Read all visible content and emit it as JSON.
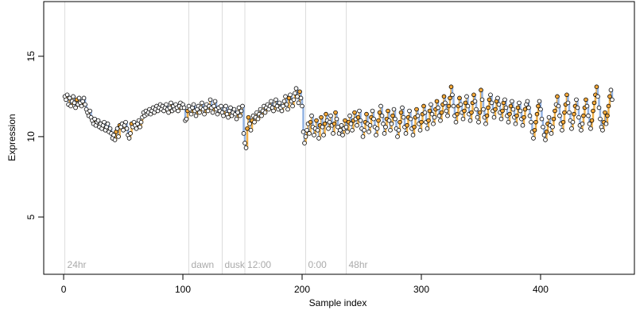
{
  "chart_data": {
    "type": "step-scatter",
    "xlabel": "Sample index",
    "ylabel": "Expression",
    "xlim": [
      -16.7,
      478.7
    ],
    "ylim": [
      1.44,
      18.4
    ],
    "xticks": [
      0,
      100,
      200,
      300,
      400
    ],
    "yticks": [
      5,
      10,
      15
    ],
    "up_color": "#f2b24a",
    "down_color": "#93b3e3",
    "point_color": "#ffffff",
    "point_up_color": "#f5a93a",
    "annotation_y": 2.0,
    "annotations": [
      {
        "x": 1,
        "label": "24hr"
      },
      {
        "x": 105,
        "label": "dawn"
      },
      {
        "x": 133,
        "label": "dusk"
      },
      {
        "x": 152,
        "label": "12:00"
      },
      {
        "x": 203,
        "label": "0:00"
      },
      {
        "x": 237,
        "label": "48hr"
      }
    ],
    "values": [
      12.5,
      12.3,
      12.6,
      12.0,
      12.4,
      11.9,
      12.2,
      12.5,
      12.1,
      11.8,
      12.3,
      12.0,
      12.4,
      12.1,
      11.9,
      12.2,
      12.4,
      12.0,
      11.7,
      11.5,
      11.3,
      11.6,
      11.2,
      11.0,
      10.8,
      11.1,
      10.7,
      10.9,
      11.0,
      10.6,
      10.8,
      10.5,
      10.7,
      10.9,
      10.4,
      10.6,
      10.8,
      10.3,
      10.5,
      10.2,
      9.9,
      10.1,
      9.8,
      10.3,
      10.5,
      10.0,
      10.7,
      10.6,
      10.8,
      10.4,
      10.7,
      10.9,
      10.5,
      10.1,
      9.9,
      10.2,
      10.8,
      10.6,
      10.9,
      10.7,
      10.5,
      10.8,
      11.0,
      10.6,
      10.9,
      11.2,
      11.5,
      11.3,
      11.6,
      11.4,
      11.5,
      11.7,
      11.4,
      11.6,
      11.8,
      11.5,
      11.7,
      11.9,
      11.6,
      11.8,
      12.0,
      11.7,
      11.9,
      11.6,
      11.8,
      12.0,
      11.7,
      11.5,
      11.8,
      12.1,
      11.6,
      11.9,
      11.7,
      12.0,
      11.8,
      11.6,
      11.9,
      12.1,
      11.8,
      12.0,
      11.8,
      11.0,
      11.1,
      11.6,
      11.9,
      11.7,
      11.4,
      11.8,
      12.0,
      11.6,
      11.3,
      11.7,
      11.9,
      11.5,
      11.8,
      12.1,
      11.7,
      11.4,
      11.8,
      12.0,
      11.6,
      11.9,
      12.3,
      11.8,
      11.5,
      11.9,
      12.2,
      11.7,
      11.4,
      11.8,
      11.6,
      11.9,
      11.5,
      11.3,
      11.7,
      11.9,
      11.4,
      11.2,
      11.6,
      11.8,
      11.3,
      11.5,
      11.7,
      11.4,
      11.1,
      11.5,
      11.8,
      11.3,
      11.6,
      11.9,
      10.2,
      9.6,
      9.3,
      10.5,
      11.2,
      10.8,
      10.4,
      11.0,
      11.3,
      10.9,
      11.2,
      11.5,
      11.1,
      11.4,
      11.7,
      11.3,
      11.6,
      11.9,
      11.5,
      11.8,
      12.0,
      11.7,
      11.9,
      12.2,
      11.8,
      11.6,
      12.0,
      12.3,
      11.9,
      11.7,
      12.1,
      11.8,
      11.6,
      11.9,
      12.2,
      12.5,
      12.0,
      11.7,
      12.4,
      12.6,
      12.2,
      11.9,
      12.3,
      12.7,
      13.0,
      12.5,
      12.1,
      12.8,
      12.4,
      11.9,
      10.3,
      9.6,
      10.0,
      10.4,
      10.8,
      10.2,
      10.9,
      11.3,
      10.6,
      10.1,
      10.5,
      11.0,
      10.4,
      9.9,
      10.7,
      11.2,
      10.6,
      10.1,
      10.8,
      11.4,
      11.0,
      10.5,
      10.9,
      11.3,
      10.7,
      10.2,
      10.8,
      11.5,
      11.1,
      10.6,
      10.2,
      10.4,
      10.7,
      10.1,
      10.5,
      11.0,
      10.6,
      10.3,
      10.9,
      11.3,
      10.8,
      10.4,
      11.0,
      11.5,
      11.1,
      10.7,
      11.2,
      11.6,
      11.0,
      10.5,
      10.0,
      10.4,
      10.9,
      11.4,
      10.8,
      10.3,
      10.7,
      11.2,
      11.6,
      11.1,
      10.6,
      10.1,
      10.5,
      11.0,
      11.5,
      11.9,
      11.3,
      10.8,
      10.2,
      10.6,
      11.1,
      11.6,
      11.0,
      10.4,
      10.8,
      11.3,
      11.7,
      11.1,
      10.5,
      10.0,
      10.4,
      10.9,
      11.5,
      11.8,
      11.2,
      10.6,
      10.2,
      10.7,
      11.2,
      11.6,
      11.1,
      10.5,
      10.1,
      10.6,
      11.2,
      11.7,
      11.3,
      10.8,
      10.4,
      10.9,
      11.4,
      11.9,
      11.5,
      10.9,
      10.5,
      11.0,
      11.6,
      12.0,
      11.4,
      10.8,
      11.2,
      11.7,
      12.2,
      11.8,
      11.3,
      11.0,
      11.5,
      12.0,
      12.5,
      12.1,
      11.6,
      11.3,
      11.9,
      12.4,
      13.1,
      12.6,
      11.9,
      11.3,
      10.9,
      11.4,
      11.9,
      12.4,
      12.0,
      11.5,
      11.1,
      11.6,
      12.1,
      12.5,
      11.9,
      11.4,
      11.0,
      11.5,
      12.1,
      12.6,
      12.2,
      11.7,
      11.2,
      10.9,
      11.5,
      12.9,
      12.3,
      11.7,
      11.2,
      10.8,
      11.3,
      11.8,
      12.3,
      12.6,
      12.1,
      11.6,
      11.2,
      11.7,
      12.2,
      12.4,
      12.0,
      11.5,
      11.1,
      11.6,
      12.1,
      12.3,
      11.8,
      11.3,
      10.9,
      11.4,
      11.9,
      12.2,
      11.7,
      11.2,
      10.8,
      11.3,
      11.8,
      12.1,
      11.6,
      11.1,
      10.7,
      11.2,
      11.7,
      12.0,
      12.2,
      11.8,
      11.3,
      10.9,
      10.3,
      9.9,
      10.4,
      10.9,
      11.4,
      11.9,
      12.2,
      11.7,
      11.1,
      10.6,
      10.1,
      9.8,
      10.3,
      10.8,
      11.2,
      10.7,
      10.2,
      10.6,
      11.1,
      11.6,
      12.0,
      12.5,
      11.9,
      11.3,
      10.8,
      10.4,
      10.9,
      11.5,
      12.0,
      12.6,
      12.1,
      11.5,
      11.0,
      10.5,
      10.9,
      11.4,
      11.9,
      12.3,
      11.8,
      11.2,
      10.7,
      10.4,
      10.8,
      11.3,
      11.8,
      12.3,
      11.9,
      11.3,
      10.8,
      10.5,
      11.0,
      11.6,
      12.1,
      12.6,
      13.1,
      12.5,
      11.8,
      11.1,
      10.6,
      10.4,
      10.9,
      11.5,
      10.8,
      11.3,
      11.9,
      12.5,
      12.9,
      12.3
    ]
  }
}
